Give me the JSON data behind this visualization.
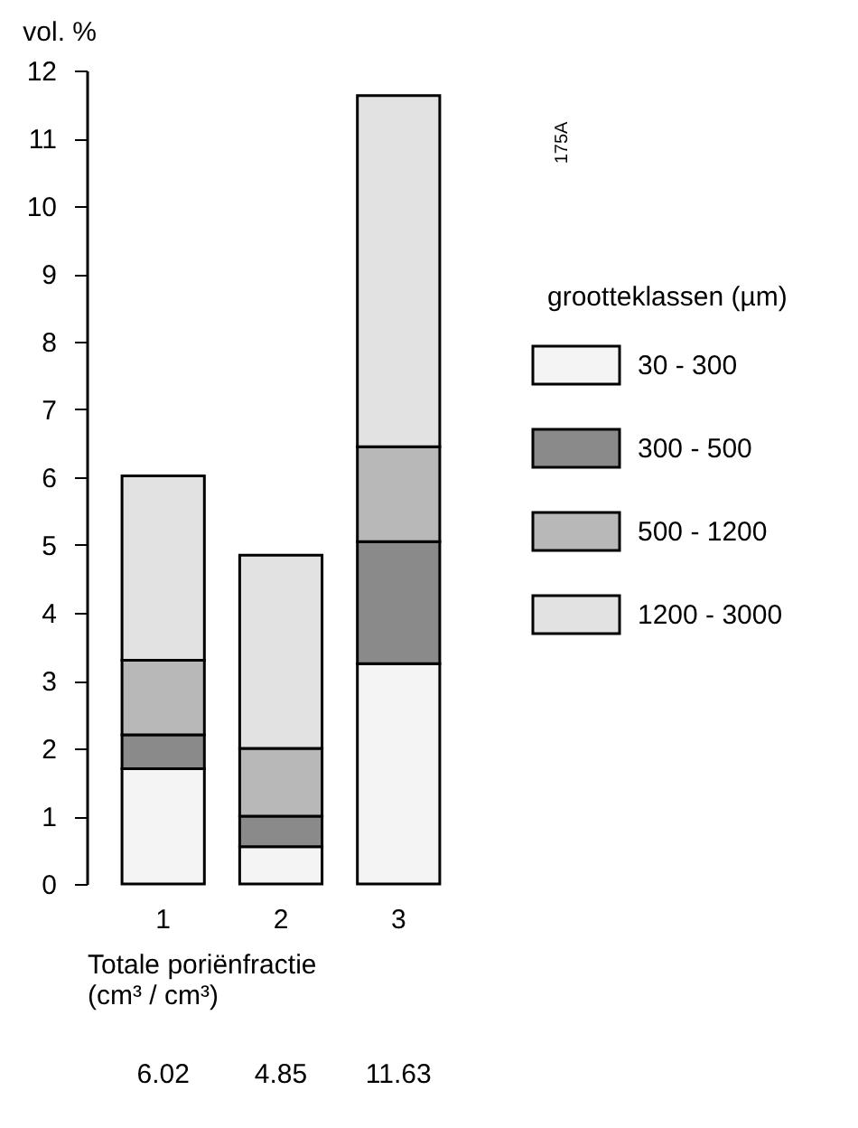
{
  "chart_data": {
    "type": "bar",
    "stacked": true,
    "ylabel": "vol. %",
    "xlabel": "Totale poriënfractie (cm³ / cm³)",
    "legend_title": "grootteklassen (µm)",
    "legend": "right",
    "grid": false,
    "categories": [
      "1",
      "2",
      "3"
    ],
    "ylim": [
      0,
      12
    ],
    "yticks": [
      0,
      1,
      2,
      3,
      4,
      5,
      6,
      7,
      8,
      9,
      10,
      11,
      12
    ],
    "series": [
      {
        "name": "30 - 300",
        "color": "#f4f4f4",
        "values": [
          1.7,
          0.55,
          3.25
        ]
      },
      {
        "name": "300 - 500",
        "color": "#8a8a8a",
        "values": [
          0.5,
          0.45,
          1.8
        ]
      },
      {
        "name": "500 - 1200",
        "color": "#b8b8b8",
        "values": [
          1.1,
          1.0,
          1.4
        ]
      },
      {
        "name": "1200 - 3000",
        "color": "#e2e2e2",
        "values": [
          2.72,
          2.85,
          5.18
        ]
      }
    ],
    "annotations": [
      "175A",
      "6.02",
      "4.85",
      "11.63"
    ]
  }
}
